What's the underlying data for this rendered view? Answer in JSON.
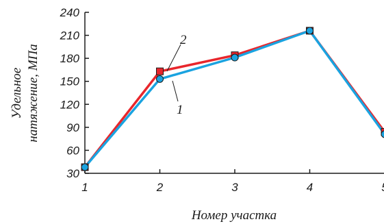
{
  "chart_data": {
    "type": "line",
    "x": [
      1,
      2,
      3,
      4,
      5
    ],
    "x_ticks": [
      "1",
      "2",
      "3",
      "4",
      "5"
    ],
    "y_ticks": [
      "30",
      "60",
      "90",
      "120",
      "150",
      "180",
      "210",
      "240"
    ],
    "xlim": [
      1,
      5
    ],
    "ylim": [
      30,
      240
    ],
    "xlabel": "Номер участка",
    "ylabel_lines": [
      "Удельное",
      "натяжение, МПа"
    ],
    "grid": false,
    "series": [
      {
        "name": "2",
        "color": "#e8262c",
        "marker": "square",
        "values": [
          38,
          163,
          184,
          216,
          84
        ]
      },
      {
        "name": "1",
        "color": "#1aa3e0",
        "marker": "circle",
        "values": [
          38,
          153,
          181,
          216,
          81
        ]
      }
    ]
  }
}
